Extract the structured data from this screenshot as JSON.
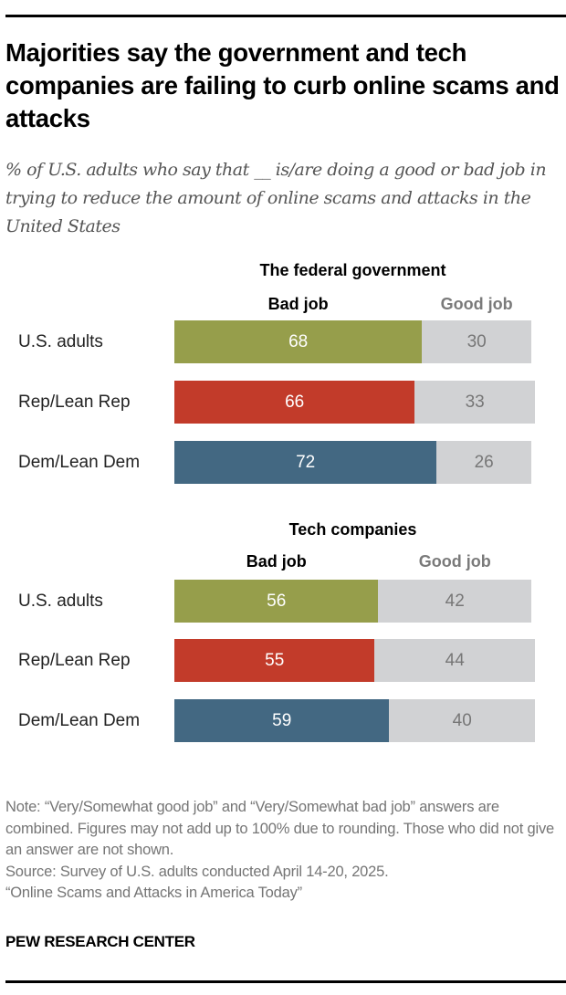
{
  "title": "Majorities say the government and tech companies are failing to curb online scams and attacks",
  "subtitle": "% of U.S. adults who say that __ is/are doing a good or bad job in trying to reduce the amount of online scams and attacks in the United States",
  "colors": {
    "us_adults": "#969e4b",
    "rep": "#c23b2a",
    "dem": "#436882",
    "good": "#d1d2d4"
  },
  "chart_data": [
    {
      "type": "bar",
      "orientation": "horizontal-stacked",
      "title": "The federal government",
      "legend": [
        "Bad job",
        "Good job"
      ],
      "categories": [
        "U.S. adults",
        "Rep/Lean Rep",
        "Dem/Lean Dem"
      ],
      "series": [
        {
          "name": "Bad job",
          "values": [
            68,
            66,
            72
          ]
        },
        {
          "name": "Good job",
          "values": [
            30,
            33,
            26
          ]
        }
      ],
      "xlim": [
        0,
        100
      ],
      "grid": false
    },
    {
      "type": "bar",
      "orientation": "horizontal-stacked",
      "title": "Tech companies",
      "legend": [
        "Bad job",
        "Good job"
      ],
      "categories": [
        "U.S. adults",
        "Rep/Lean Rep",
        "Dem/Lean Dem"
      ],
      "series": [
        {
          "name": "Bad job",
          "values": [
            56,
            55,
            59
          ]
        },
        {
          "name": "Good job",
          "values": [
            42,
            44,
            40
          ]
        }
      ],
      "xlim": [
        0,
        100
      ],
      "grid": false
    }
  ],
  "notes": [
    "Note: “Very/Somewhat good job” and “Very/Somewhat bad job” answers are combined. Figures may not add up to 100% due to rounding. Those who did not give an answer are not shown.",
    "Source: Survey of U.S. adults conducted April 14-20, 2025.",
    "“Online Scams and Attacks in America Today”"
  ],
  "source_logo": "PEW RESEARCH CENTER"
}
